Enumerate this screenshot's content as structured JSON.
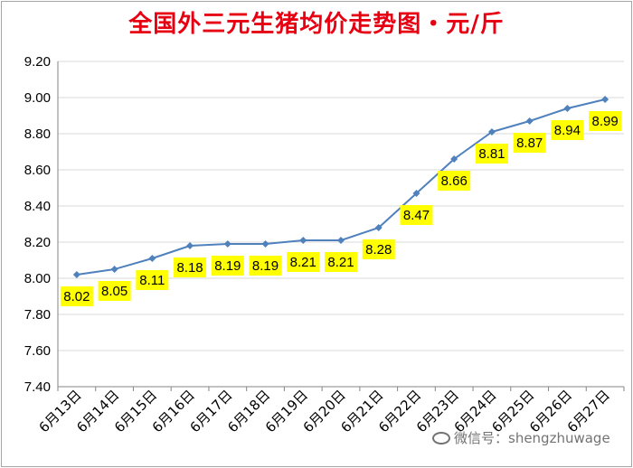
{
  "title": "全国外三元生猪均价走势图・元/斤",
  "watermark": "微信号：shengzhuwage",
  "colors": {
    "title": "#e60012",
    "line": "#4f81bd",
    "label_bg": "#ffff00",
    "grid": "#d9d9d9"
  },
  "chart_data": {
    "type": "line",
    "title": "全国外三元生猪均价走势图・元/斤",
    "xlabel": "",
    "ylabel": "",
    "categories": [
      "6月13日",
      "6月14日",
      "6月15日",
      "6月16日",
      "6月17日",
      "6月18日",
      "6月19日",
      "6月20日",
      "6月21日",
      "6月22日",
      "6月23日",
      "6月24日",
      "6月25日",
      "6月26日",
      "6月27日"
    ],
    "values": [
      8.02,
      8.05,
      8.11,
      8.18,
      8.19,
      8.19,
      8.21,
      8.21,
      8.28,
      8.47,
      8.66,
      8.81,
      8.87,
      8.94,
      8.99
    ],
    "data_labels": [
      "8.02",
      "8.05",
      "8.11",
      "8.18",
      "8.19",
      "8.19",
      "8.21",
      "8.21",
      "8.28",
      "8.47",
      "8.66",
      "8.81",
      "8.87",
      "8.94",
      "8.99"
    ],
    "ylim": [
      7.4,
      9.2
    ],
    "yticks": [
      "7.40",
      "7.60",
      "7.80",
      "8.00",
      "8.20",
      "8.40",
      "8.60",
      "8.80",
      "9.00",
      "9.20"
    ],
    "grid": true,
    "legend": "none",
    "marker": "diamond"
  }
}
